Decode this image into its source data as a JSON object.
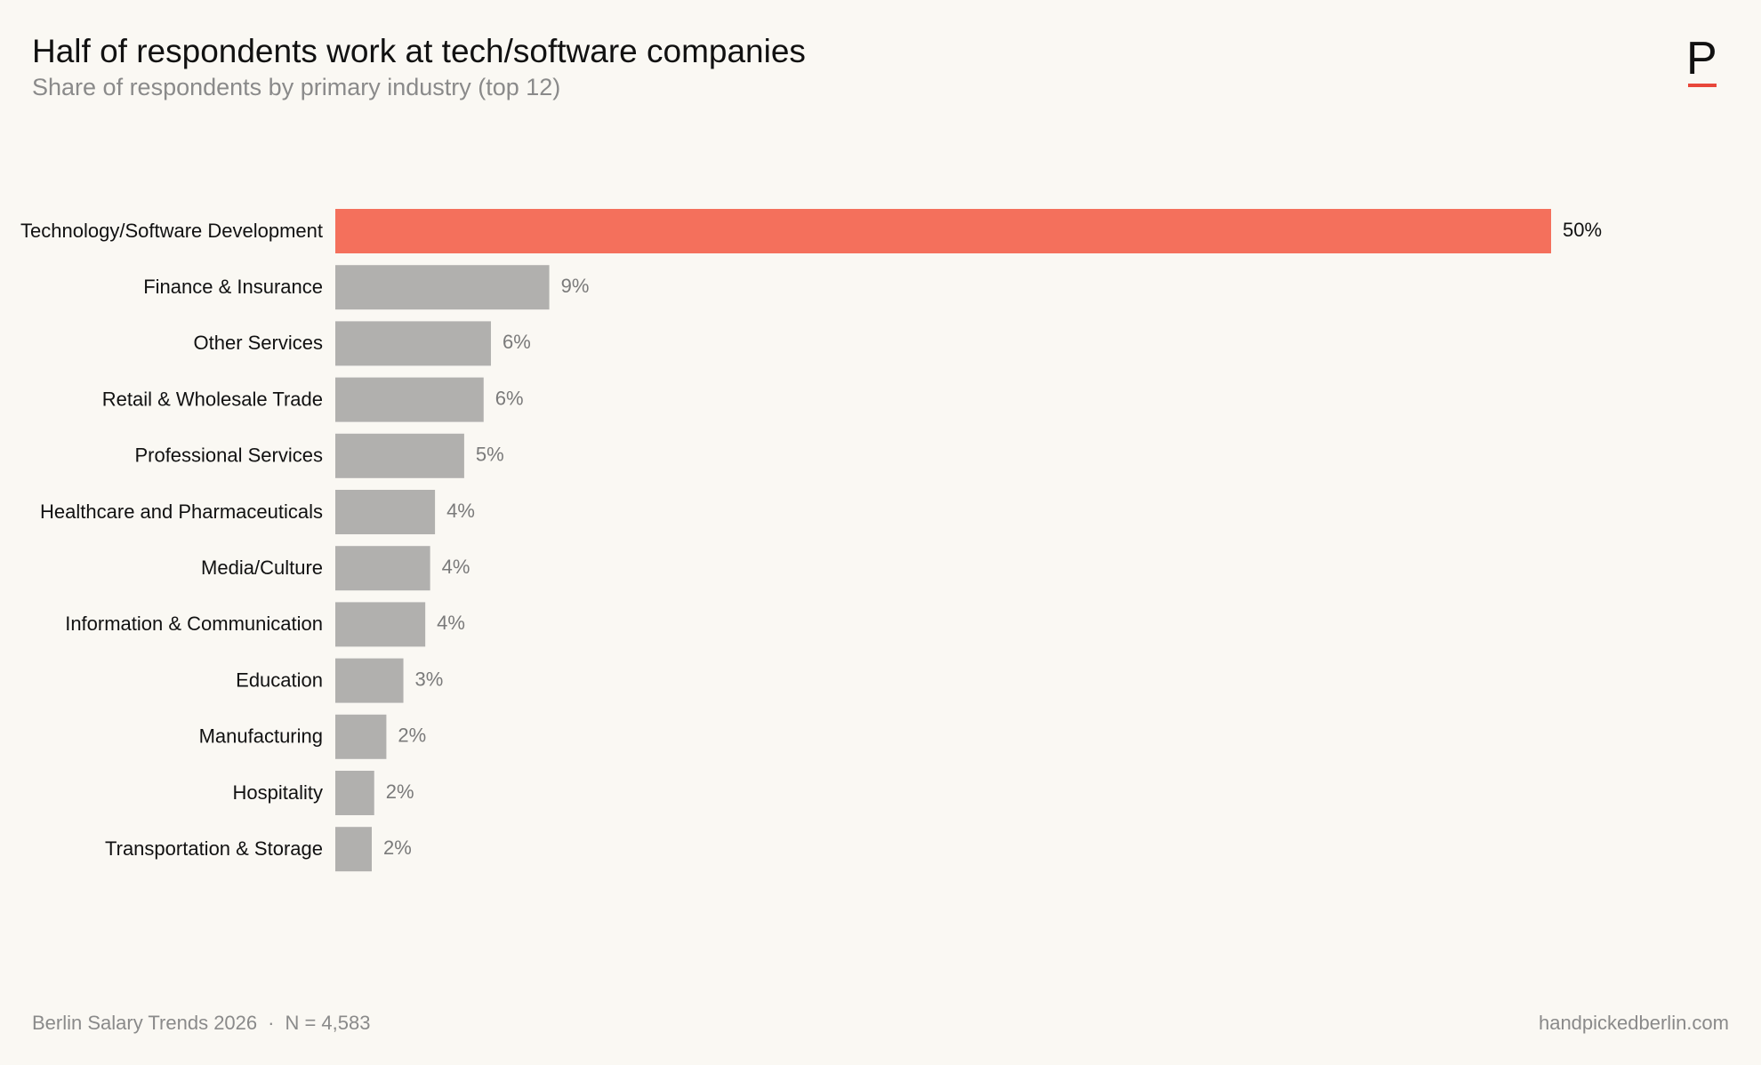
{
  "header": {
    "title": "Half of respondents work at tech/software companies",
    "subtitle": "Share of respondents by primary industry (top 12)"
  },
  "logo": {
    "letter": "P",
    "accent_color": "#e8473a"
  },
  "footer": {
    "source": "Berlin Salary Trends 2026",
    "separator": "·",
    "sample": "N = 4,583",
    "site": "handpickedberlin.com"
  },
  "colors": {
    "highlight": "#f4705c",
    "default": "#b1b0ae",
    "highlight_label": "#111111",
    "default_label": "#7a7a7a",
    "category_label": "#111111"
  },
  "chart_data": {
    "type": "bar",
    "orientation": "horizontal",
    "categories": [
      "Technology/Software Development",
      "Finance & Insurance",
      "Other Services",
      "Retail & Wholesale Trade",
      "Professional Services",
      "Healthcare and Pharmaceuticals",
      "Media/Culture",
      "Information & Communication",
      "Education",
      "Manufacturing",
      "Hospitality",
      "Transportation & Storage"
    ],
    "values": [
      50.0,
      8.8,
      6.4,
      6.1,
      5.3,
      4.1,
      3.9,
      3.7,
      2.8,
      2.1,
      1.6,
      1.5
    ],
    "value_labels": [
      "50%",
      "9%",
      "6%",
      "6%",
      "5%",
      "4%",
      "4%",
      "4%",
      "3%",
      "2%",
      "2%",
      "2%"
    ],
    "highlight_index": 0,
    "xlim": [
      0,
      50
    ],
    "grid": false,
    "title": "Half of respondents work at tech/software companies",
    "subtitle": "Share of respondents by primary industry (top 12)"
  }
}
